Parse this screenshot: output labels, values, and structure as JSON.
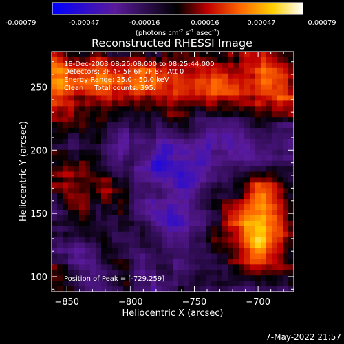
{
  "chart_data": {
    "type": "heatmap",
    "title": "Reconstructed RHESSI Image",
    "xlabel": "Heliocentric X (arcsec)",
    "ylabel": "Heliocentric Y (arcsec)",
    "xlim": [
      -862,
      -672
    ],
    "ylim": [
      88,
      278
    ],
    "xticks": [
      -850,
      -800,
      -750,
      -700
    ],
    "yticks": [
      100,
      150,
      200,
      250
    ],
    "colorbar": {
      "ticks": [
        "-0.00079",
        "-0.00047",
        "-0.00016",
        "0.00016",
        "0.00047",
        "0.00079"
      ],
      "range": [
        -0.00079,
        0.00079
      ],
      "label_main": "(photons cm",
      "label_exp1": "-2",
      "label_mid": " s",
      "label_exp2": "-1",
      "label_mid2": " asec",
      "label_exp3": "-2",
      "label_end": ")",
      "colormap": [
        "#0000ff",
        "#5a1a9a",
        "#000000",
        "#c00000",
        "#ff6600",
        "#ffd000",
        "#ffffff"
      ]
    },
    "annotations": [
      "18-Dec-2003 08:25:08.000 to 08:25:44.000",
      "Detectors: 3F 4F 5F 6F 7F 8F, Att 0",
      "Energy Range: 25.0 - 50.0 keV",
      "Clean     Total counts: 395."
    ],
    "peak_label": "Position of Peak = [-729,259]",
    "peak": [
      -729,
      259
    ]
  },
  "footer": {
    "timestamp": "7-May-2022 21:57"
  }
}
